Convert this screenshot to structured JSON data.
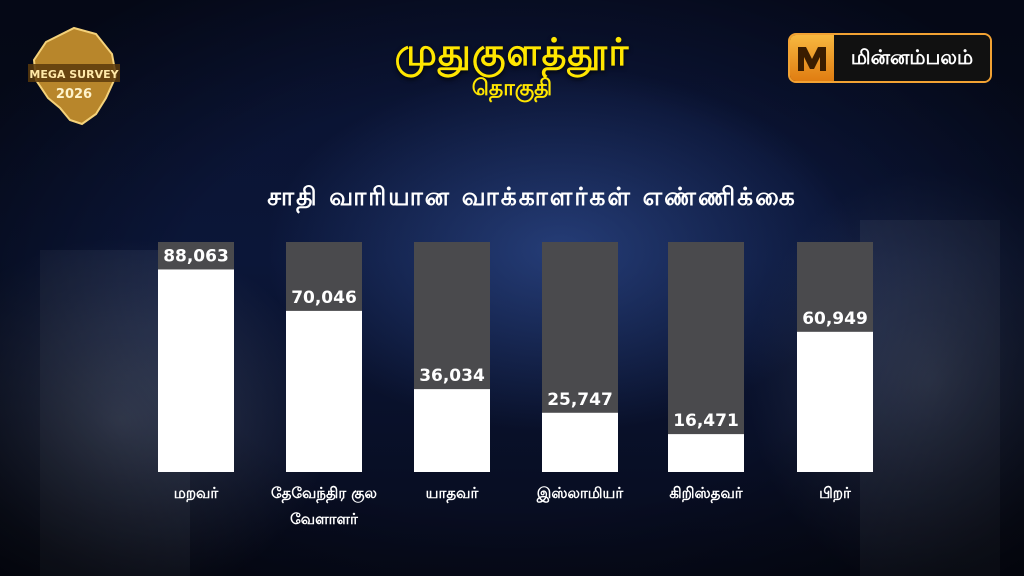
{
  "header": {
    "title": "முதுகுளத்தூர்",
    "subtitle": "தொகுதி"
  },
  "badge": {
    "line1": "MEGA SURVEY",
    "line2": "2026"
  },
  "brand": {
    "name": "மின்னம்பலம்",
    "icon": "m-logo-icon"
  },
  "colors": {
    "title": "#ffe600",
    "bar_fill": "#ffffff",
    "bar_track": "#4a4a4d",
    "brand_border": "#f2a233"
  },
  "chart_data": {
    "type": "bar",
    "title": "சாதி வாரியான வாக்காளர்கள் எண்ணிக்கை",
    "categories": [
      [
        "மறவர்"
      ],
      [
        "தேவேந்திர குல",
        "வேளாளர்"
      ],
      [
        "யாதவர்"
      ],
      [
        "இஸ்லாமியர்"
      ],
      [
        "கிறிஸ்தவர்"
      ],
      [
        "பிறர்"
      ]
    ],
    "values": [
      88063,
      70046,
      36034,
      25747,
      16471,
      60949
    ],
    "value_labels": [
      "88,063",
      "70,046",
      "36,034",
      "25,747",
      "16,471",
      "60,949"
    ],
    "ylim": [
      0,
      100000
    ],
    "grid": false,
    "legend": "none"
  }
}
